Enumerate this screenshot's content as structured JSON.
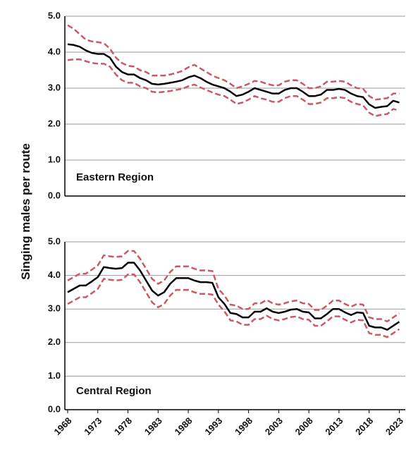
{
  "chart_data": [
    {
      "type": "line",
      "ylabel": "Singing males per route",
      "annotation": "Eastern Region",
      "x": [
        1968,
        1969,
        1970,
        1971,
        1972,
        1973,
        1974,
        1975,
        1976,
        1977,
        1978,
        1979,
        1980,
        1981,
        1982,
        1983,
        1984,
        1985,
        1986,
        1987,
        1988,
        1989,
        1990,
        1991,
        1992,
        1993,
        1994,
        1995,
        1996,
        1997,
        1998,
        1999,
        2000,
        2001,
        2002,
        2003,
        2004,
        2005,
        2006,
        2007,
        2008,
        2009,
        2010,
        2011,
        2012,
        2013,
        2014,
        2015,
        2016,
        2017,
        2018,
        2019,
        2020,
        2021,
        2022,
        2023
      ],
      "xlim": [
        1968,
        2024
      ],
      "ylim": [
        0,
        5
      ],
      "yticks": [
        {
          "value": 0,
          "label": "0.0"
        },
        {
          "value": 1,
          "label": "1.0"
        },
        {
          "value": 2,
          "label": "2.0"
        },
        {
          "value": 3,
          "label": "3.0"
        },
        {
          "value": 4,
          "label": "4.0"
        },
        {
          "value": 5,
          "label": "5.0"
        }
      ],
      "grid": true,
      "series": [
        {
          "color": "#c95a64",
          "dashed": true,
          "values": [
            4.75,
            4.65,
            4.5,
            4.35,
            4.3,
            4.28,
            4.25,
            4.1,
            3.85,
            3.7,
            3.62,
            3.6,
            3.5,
            3.45,
            3.35,
            3.35,
            3.35,
            3.38,
            3.42,
            3.48,
            3.58,
            3.65,
            3.55,
            3.45,
            3.35,
            3.28,
            3.22,
            3.12,
            3.0,
            3.05,
            3.12,
            3.2,
            3.18,
            3.12,
            3.08,
            3.08,
            3.18,
            3.22,
            3.22,
            3.12,
            3.0,
            3.0,
            3.05,
            3.18,
            3.18,
            3.2,
            3.18,
            3.08,
            3.0,
            2.98,
            2.78,
            2.68,
            2.7,
            2.72,
            2.85,
            2.85
          ]
        },
        {
          "color": "#c95a64",
          "dashed": true,
          "values": [
            3.78,
            3.8,
            3.8,
            3.75,
            3.7,
            3.68,
            3.68,
            3.6,
            3.38,
            3.22,
            3.15,
            3.15,
            3.05,
            3.0,
            2.9,
            2.88,
            2.9,
            2.92,
            2.95,
            2.98,
            3.05,
            3.1,
            3.02,
            2.95,
            2.88,
            2.82,
            2.78,
            2.68,
            2.56,
            2.6,
            2.68,
            2.78,
            2.72,
            2.68,
            2.62,
            2.62,
            2.72,
            2.78,
            2.78,
            2.68,
            2.56,
            2.56,
            2.6,
            2.72,
            2.72,
            2.75,
            2.72,
            2.62,
            2.56,
            2.52,
            2.32,
            2.22,
            2.26,
            2.28,
            2.42,
            2.38
          ]
        },
        {
          "color": "#000000",
          "dashed": false,
          "values": [
            4.22,
            4.2,
            4.15,
            4.05,
            3.98,
            3.95,
            3.95,
            3.85,
            3.6,
            3.45,
            3.38,
            3.38,
            3.28,
            3.22,
            3.12,
            3.1,
            3.12,
            3.15,
            3.18,
            3.22,
            3.3,
            3.35,
            3.28,
            3.18,
            3.1,
            3.05,
            3.0,
            2.9,
            2.78,
            2.82,
            2.9,
            3.0,
            2.95,
            2.9,
            2.85,
            2.85,
            2.95,
            3.0,
            3.0,
            2.9,
            2.78,
            2.78,
            2.82,
            2.95,
            2.95,
            2.98,
            2.95,
            2.85,
            2.78,
            2.75,
            2.55,
            2.45,
            2.48,
            2.5,
            2.65,
            2.6
          ]
        }
      ]
    },
    {
      "type": "line",
      "annotation": "Central Region",
      "x": [
        1968,
        1969,
        1970,
        1971,
        1972,
        1973,
        1974,
        1975,
        1976,
        1977,
        1978,
        1979,
        1980,
        1981,
        1982,
        1983,
        1984,
        1985,
        1986,
        1987,
        1988,
        1989,
        1990,
        1991,
        1992,
        1993,
        1994,
        1995,
        1996,
        1997,
        1998,
        1999,
        2000,
        2001,
        2002,
        2003,
        2004,
        2005,
        2006,
        2007,
        2008,
        2009,
        2010,
        2011,
        2012,
        2013,
        2014,
        2015,
        2016,
        2017,
        2018,
        2019,
        2020,
        2021,
        2022,
        2023
      ],
      "xlim": [
        1968,
        2024
      ],
      "xticks": [
        1968,
        1973,
        1978,
        1983,
        1988,
        1993,
        1998,
        2003,
        2008,
        2013,
        2018,
        2023
      ],
      "ylim": [
        0,
        5
      ],
      "yticks": [
        {
          "value": 0,
          "label": "0.0"
        },
        {
          "value": 1,
          "label": "1.0"
        },
        {
          "value": 2,
          "label": "2.0"
        },
        {
          "value": 3,
          "label": "3.0"
        },
        {
          "value": 4,
          "label": "4.0"
        },
        {
          "value": 5,
          "label": "5.0"
        }
      ],
      "grid": true,
      "series": [
        {
          "color": "#c95a64",
          "dashed": true,
          "values": [
            3.85,
            3.95,
            4.05,
            4.05,
            4.17,
            4.3,
            4.6,
            4.57,
            4.55,
            4.57,
            4.73,
            4.73,
            4.5,
            4.2,
            3.9,
            3.75,
            3.85,
            4.1,
            4.27,
            4.27,
            4.27,
            4.2,
            4.15,
            4.15,
            4.13,
            3.6,
            3.4,
            3.13,
            3.1,
            3.0,
            3.0,
            3.17,
            3.17,
            3.27,
            3.17,
            3.13,
            3.17,
            3.23,
            3.25,
            3.17,
            3.15,
            2.97,
            2.97,
            3.1,
            3.25,
            3.25,
            3.15,
            3.07,
            3.15,
            3.13,
            2.75,
            2.7,
            2.7,
            2.63,
            2.75,
            2.87
          ]
        },
        {
          "color": "#c95a64",
          "dashed": true,
          "values": [
            3.15,
            3.25,
            3.35,
            3.35,
            3.47,
            3.6,
            3.9,
            3.87,
            3.85,
            3.87,
            4.03,
            4.03,
            3.8,
            3.5,
            3.2,
            3.05,
            3.15,
            3.4,
            3.57,
            3.57,
            3.57,
            3.5,
            3.45,
            3.45,
            3.43,
            3.13,
            2.93,
            2.66,
            2.63,
            2.53,
            2.53,
            2.7,
            2.7,
            2.8,
            2.7,
            2.66,
            2.7,
            2.76,
            2.78,
            2.7,
            2.68,
            2.5,
            2.5,
            2.63,
            2.78,
            2.78,
            2.68,
            2.6,
            2.68,
            2.66,
            2.28,
            2.23,
            2.23,
            2.16,
            2.28,
            2.4
          ]
        },
        {
          "color": "#000000",
          "dashed": false,
          "values": [
            3.5,
            3.6,
            3.7,
            3.7,
            3.82,
            3.95,
            4.25,
            4.22,
            4.2,
            4.22,
            4.38,
            4.38,
            4.15,
            3.85,
            3.55,
            3.4,
            3.5,
            3.75,
            3.92,
            3.92,
            3.92,
            3.85,
            3.8,
            3.8,
            3.78,
            3.35,
            3.15,
            2.88,
            2.85,
            2.75,
            2.75,
            2.92,
            2.92,
            3.02,
            2.92,
            2.88,
            2.92,
            2.98,
            3.0,
            2.92,
            2.9,
            2.72,
            2.72,
            2.85,
            3.0,
            3.0,
            2.9,
            2.82,
            2.9,
            2.88,
            2.5,
            2.45,
            2.45,
            2.38,
            2.5,
            2.62
          ]
        }
      ]
    }
  ]
}
